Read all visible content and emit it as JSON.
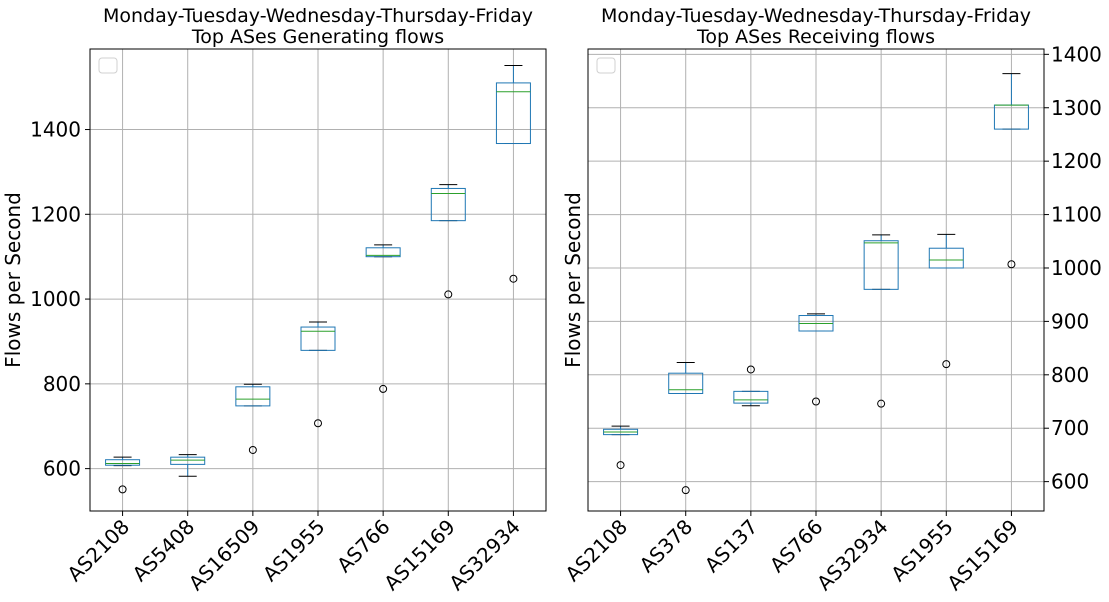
{
  "chart_data": [
    {
      "type": "box",
      "title": [
        "Monday-Tuesday-Wednesday-Thursday-Friday",
        "Top ASes Generating flows"
      ],
      "xlabel": "",
      "ylabel": "Flows per Second",
      "ylim": [
        500,
        1590
      ],
      "yticks": [
        600,
        800,
        1000,
        1200,
        1400
      ],
      "y_axis_side": "left",
      "grid": true,
      "legend": "empty, upper-left",
      "colors": {
        "box": "#1f77b4",
        "median": "#2ca02c",
        "whisker": "#000000",
        "outlier": "#000000"
      },
      "categories": [
        "AS2108",
        "AS5408",
        "AS16509",
        "AS1955",
        "AS766",
        "AS15169",
        "AS32934"
      ],
      "boxes": [
        {
          "category": "AS2108",
          "whislo": 607,
          "q1": 608,
          "median": 612,
          "q3": 621,
          "whishi": 627,
          "fliers": [
            551
          ]
        },
        {
          "category": "AS5408",
          "whislo": 582,
          "q1": 610,
          "median": 620,
          "q3": 627,
          "whishi": 633,
          "fliers": []
        },
        {
          "category": "AS16509",
          "whislo": 748,
          "q1": 748,
          "median": 764,
          "q3": 793,
          "whishi": 799,
          "fliers": [
            644
          ]
        },
        {
          "category": "AS1955",
          "whislo": 879,
          "q1": 879,
          "median": 924,
          "q3": 934,
          "whishi": 946,
          "fliers": [
            707
          ]
        },
        {
          "category": "AS766",
          "whislo": 1100,
          "q1": 1100,
          "median": 1103,
          "q3": 1121,
          "whishi": 1128,
          "fliers": [
            788
          ]
        },
        {
          "category": "AS15169",
          "whislo": 1185,
          "q1": 1185,
          "median": 1249,
          "q3": 1261,
          "whishi": 1270,
          "fliers": [
            1011
          ]
        },
        {
          "category": "AS32934",
          "whislo": 1367,
          "q1": 1367,
          "median": 1489,
          "q3": 1510,
          "whishi": 1551,
          "fliers": [
            1048
          ]
        }
      ]
    },
    {
      "type": "box",
      "title": [
        "Monday-Tuesday-Wednesday-Thursday-Friday",
        "Top ASes Receiving flows"
      ],
      "xlabel": "",
      "ylabel": "Flows per Second",
      "ylim": [
        545,
        1410
      ],
      "yticks": [
        600,
        700,
        800,
        900,
        1000,
        1100,
        1200,
        1300,
        1400
      ],
      "y_axis_side": "right",
      "grid": true,
      "legend": "empty, upper-left",
      "colors": {
        "box": "#1f77b4",
        "median": "#2ca02c",
        "whisker": "#000000",
        "outlier": "#000000"
      },
      "categories": [
        "AS2108",
        "AS378",
        "AS137",
        "AS766",
        "AS32934",
        "AS1955",
        "AS15169"
      ],
      "boxes": [
        {
          "category": "AS2108",
          "whislo": 688,
          "q1": 688,
          "median": 693,
          "q3": 698,
          "whishi": 704,
          "fliers": [
            631
          ]
        },
        {
          "category": "AS378",
          "whislo": 765,
          "q1": 765,
          "median": 772,
          "q3": 803,
          "whishi": 823,
          "fliers": [
            584
          ]
        },
        {
          "category": "AS137",
          "whislo": 742,
          "q1": 747,
          "median": 753,
          "q3": 769,
          "whishi": 769,
          "fliers": [
            810
          ]
        },
        {
          "category": "AS766",
          "whislo": 882,
          "q1": 882,
          "median": 896,
          "q3": 911,
          "whishi": 914,
          "fliers": [
            750
          ]
        },
        {
          "category": "AS32934",
          "whislo": 960,
          "q1": 960,
          "median": 1047,
          "q3": 1051,
          "whishi": 1062,
          "fliers": [
            746
          ]
        },
        {
          "category": "AS1955",
          "whislo": 1000,
          "q1": 1000,
          "median": 1015,
          "q3": 1037,
          "whishi": 1063,
          "fliers": [
            820
          ]
        },
        {
          "category": "AS15169",
          "whislo": 1260,
          "q1": 1260,
          "median": 1305,
          "q3": 1305,
          "whishi": 1364,
          "fliers": [
            1007
          ]
        }
      ]
    }
  ]
}
